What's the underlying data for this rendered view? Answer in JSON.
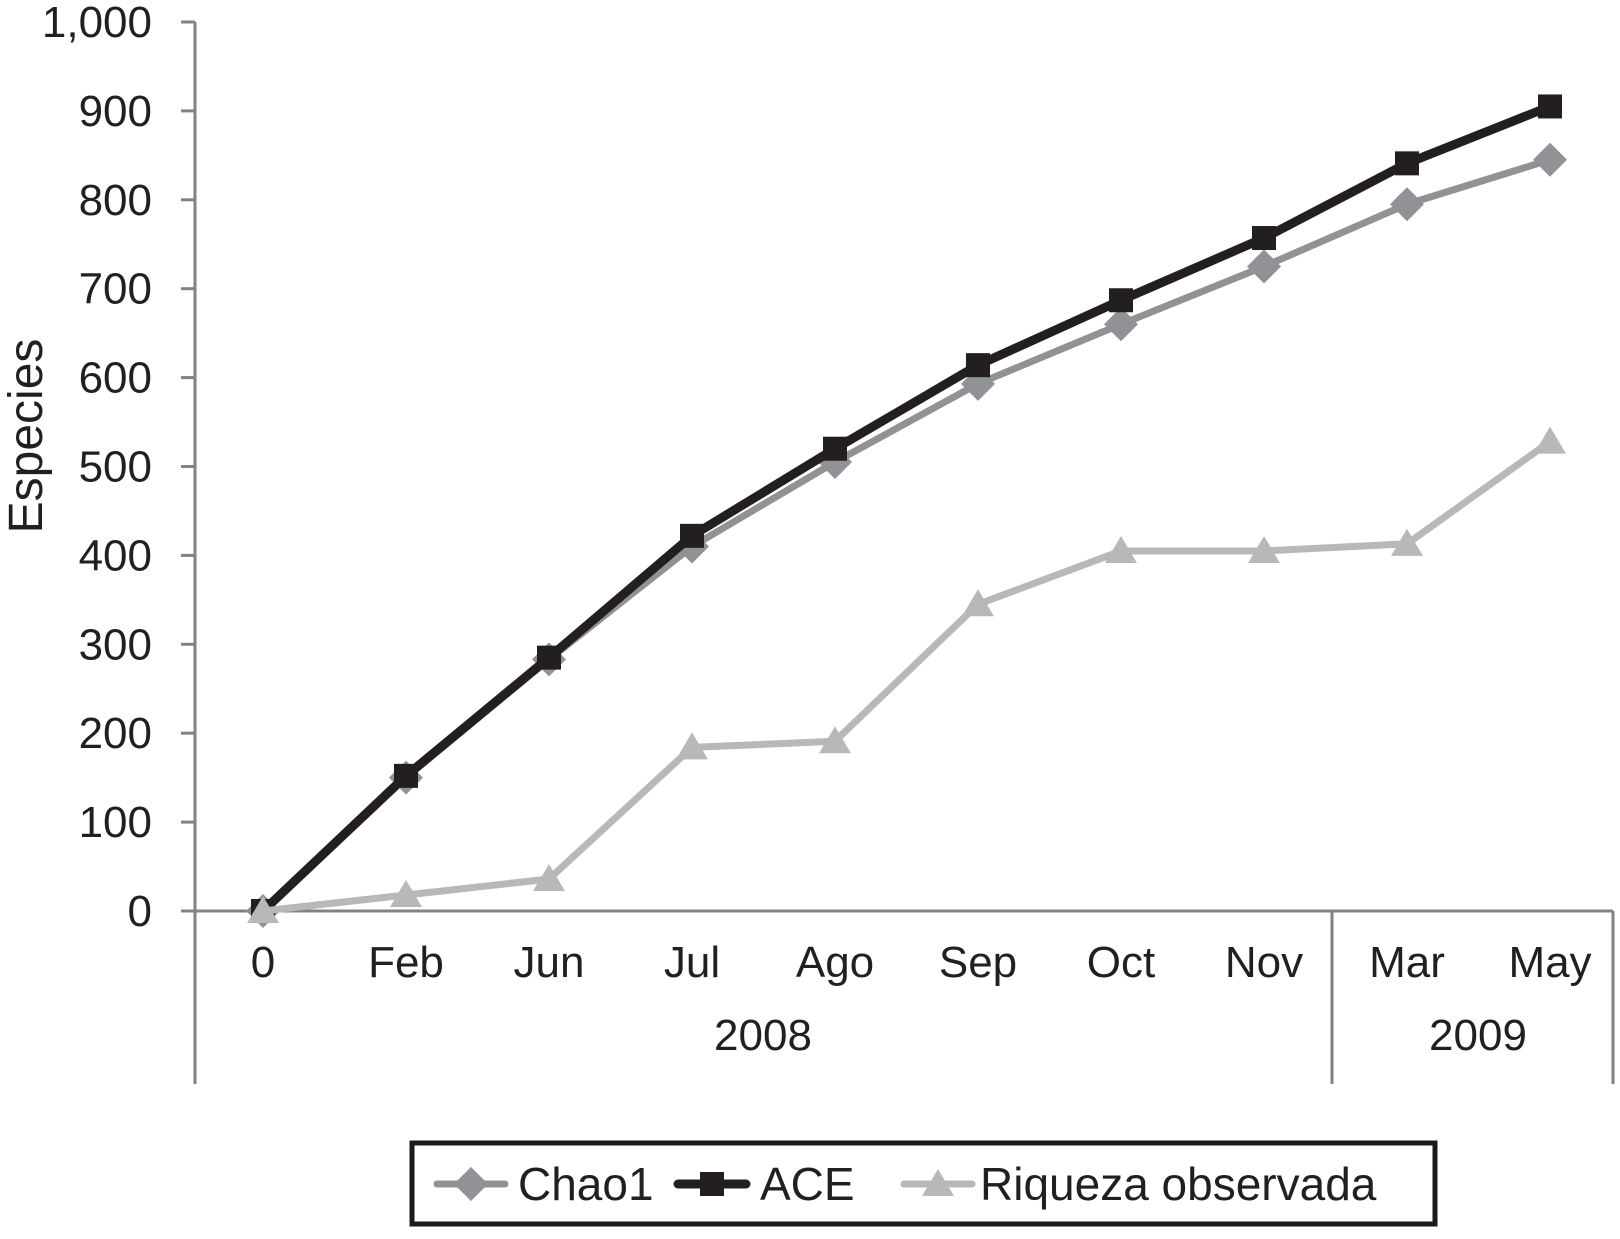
{
  "figure": {
    "background": "#ffffff",
    "axis_color": "#808285",
    "text_color": "#231f20"
  },
  "chart_data": {
    "type": "line",
    "title": "",
    "xlabel": "",
    "ylabel": "Especies",
    "ylim": [
      0,
      1000
    ],
    "grid": "off",
    "legend_position": "bottom-center",
    "ytick_values": [
      0,
      100,
      200,
      300,
      400,
      500,
      600,
      700,
      800,
      900,
      1000
    ],
    "ytick_labels": [
      "0",
      "100",
      "200",
      "300",
      "400",
      "500",
      "600",
      "700",
      "800",
      "900",
      "1,000"
    ],
    "categories": [
      "0",
      "Feb",
      "Jun",
      "Jul",
      "Ago",
      "Sep",
      "Oct",
      "Nov",
      "Mar",
      "May"
    ],
    "year_groups": [
      {
        "label": "2008",
        "from": 0,
        "to": 7
      },
      {
        "label": "2009",
        "from": 8,
        "to": 9
      }
    ],
    "series": [
      {
        "name": "Chao1",
        "marker": "diamond",
        "color": "#909295",
        "values": [
          0,
          150,
          283,
          410,
          505,
          593,
          660,
          725,
          795,
          845
        ]
      },
      {
        "name": "ACE",
        "marker": "square",
        "color": "#231f20",
        "values": [
          0,
          152,
          285,
          422,
          520,
          614,
          687,
          757,
          841,
          905
        ]
      },
      {
        "name": "Riqueza observada",
        "marker": "triangle",
        "color": "#b6b8ba",
        "values": [
          0,
          18,
          36,
          184,
          191,
          345,
          405,
          405,
          413,
          528
        ]
      }
    ],
    "legend": {
      "border_color": "#1a1a1a",
      "entries": [
        "Chao1",
        "ACE",
        "Riqueza observada"
      ]
    }
  }
}
